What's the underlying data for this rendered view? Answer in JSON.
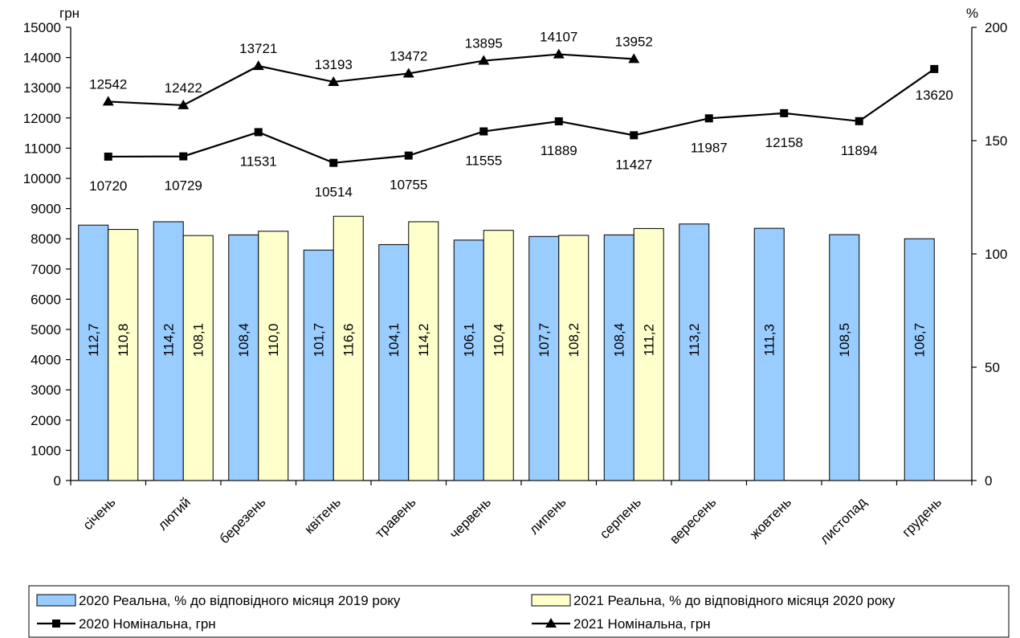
{
  "chart_data": {
    "type": "bar+line",
    "categories": [
      "січень",
      "лютий",
      "березень",
      "квітень",
      "травень",
      "червень",
      "липень",
      "серпень",
      "вересень",
      "жовтень",
      "листопад",
      "грудень"
    ],
    "left_axis": {
      "label": "грн",
      "min": 0,
      "max": 15000,
      "step": 1000
    },
    "right_axis": {
      "label": "%",
      "min": 0,
      "max": 200,
      "step": 50
    },
    "bar_series": [
      {
        "name": "2020 Реальна, % до відповідного місяця 2019 року",
        "color": "#99CCFF",
        "axis": "right",
        "values": [
          112.7,
          114.2,
          108.4,
          101.7,
          104.1,
          106.1,
          107.7,
          108.4,
          113.2,
          111.3,
          108.5,
          106.7
        ],
        "labels": [
          "112,7",
          "114,2",
          "108,4",
          "101,7",
          "104,1",
          "106,1",
          "107,7",
          "108,4",
          "113,2",
          "111,3",
          "108,5",
          "106,7"
        ]
      },
      {
        "name": "2021 Реальна, % до відповідного місяця 2020 року",
        "color": "#FFFFCC",
        "axis": "right",
        "values": [
          110.8,
          108.1,
          110.0,
          116.6,
          114.2,
          110.4,
          108.2,
          111.2,
          null,
          null,
          null,
          null
        ],
        "labels": [
          "110,8",
          "108,1",
          "110,0",
          "116,6",
          "114,2",
          "110,4",
          "108,2",
          "111,2",
          "",
          "",
          "",
          ""
        ]
      }
    ],
    "line_series": [
      {
        "name": "2020 Номінальна, грн",
        "marker": "square",
        "axis": "left",
        "values": [
          10720,
          10729,
          11531,
          10514,
          10755,
          11555,
          11889,
          11427,
          11987,
          12158,
          11894,
          13620
        ],
        "labels": [
          "10720",
          "10729",
          "11531",
          "10514",
          "10755",
          "11555",
          "11889",
          "11427",
          "11987",
          "12158",
          "11894",
          "13620"
        ]
      },
      {
        "name": "2021 Номінальна, грн",
        "marker": "triangle",
        "axis": "left",
        "values": [
          12542,
          12422,
          13721,
          13193,
          13472,
          13895,
          14107,
          13952,
          null,
          null,
          null,
          null
        ],
        "labels": [
          "12542",
          "12422",
          "13721",
          "13193",
          "13472",
          "13895",
          "14107",
          "13952",
          "",
          "",
          "",
          ""
        ]
      }
    ],
    "legend": {
      "placement": "bottom"
    }
  }
}
